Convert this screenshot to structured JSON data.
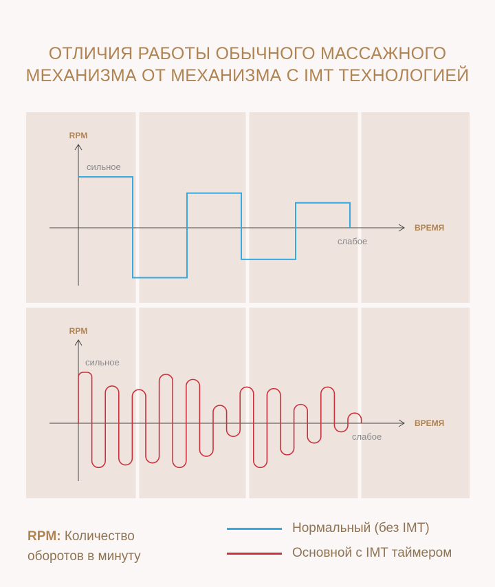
{
  "title": {
    "line1": "ОТЛИЧИЯ РАБОТЫ ОБЫЧНОГО МАССАЖНОГО",
    "line2": "МЕХАНИЗМА ОТ МЕХАНИЗМА С IMT ТЕХНОЛОГИЕЙ"
  },
  "colors": {
    "panel_bg": "#efe3de",
    "axis": "#444444",
    "label": "#b08452",
    "normal": "#36a9e1",
    "imt": "#c9313c"
  },
  "chart_data": [
    {
      "type": "line",
      "step": true,
      "ylabel": "RPM",
      "xlabel": "ВРЕМЯ",
      "annotations": {
        "strong": "сильное",
        "weak": "слабое"
      },
      "series": [
        {
          "name": "Нормальный (без IMT)",
          "x": [
            0,
            1,
            1,
            2,
            2,
            3,
            3,
            4,
            4,
            5,
            5
          ],
          "y": [
            1,
            1,
            -0.98,
            -0.98,
            0.68,
            0.68,
            -0.62,
            -0.62,
            0.49,
            0.49,
            0
          ]
        }
      ],
      "xlim": [
        -0.5,
        6
      ],
      "ylim": [
        -1.1,
        1.8
      ]
    },
    {
      "type": "line",
      "ylabel": "RPM",
      "xlabel": "ВРЕМЯ",
      "annotations": {
        "strong": "сильное",
        "weak": "слабое"
      },
      "series": [
        {
          "name": "Основной с IMT таймером",
          "peaks": [
            1.0,
            -0.87,
            0.73,
            -0.82,
            0.66,
            -0.78,
            0.96,
            -0.87,
            0.86,
            -0.65,
            0.35,
            -0.26,
            0.71,
            -0.87,
            0.68,
            -0.62,
            0.37,
            -0.39,
            0.71,
            -0.17,
            0.2,
            0
          ]
        }
      ],
      "xlim": [
        -0.5,
        6
      ],
      "ylim": [
        -1.1,
        1.8
      ]
    }
  ],
  "legend": {
    "rpm_key": "RPM:",
    "rpm_text1": "Количество",
    "rpm_text2": "оборотов в минуту",
    "normal": "Нормальный (без IMT)",
    "imt": "Основной с IMT таймером"
  }
}
